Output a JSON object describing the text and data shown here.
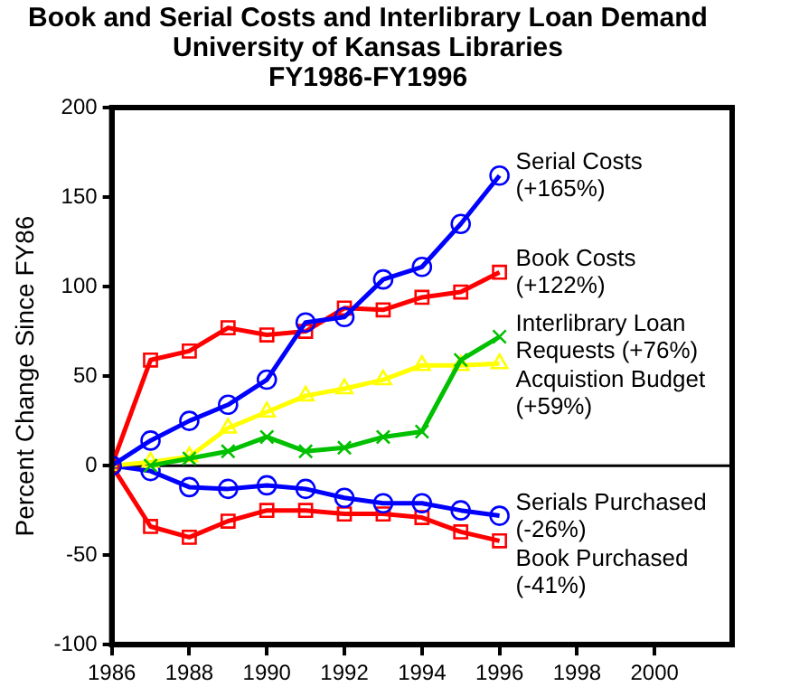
{
  "chart_data": {
    "type": "line",
    "title": "Book and Serial Costs and Interlibrary Loan Demand\nUniversity of Kansas Libraries\nFY1986-FY1996",
    "ylabel": "Percent Change Since FY86",
    "x": [
      1986,
      1987,
      1988,
      1989,
      1990,
      1991,
      1992,
      1993,
      1994,
      1995,
      1996
    ],
    "series": [
      {
        "name": "Serial Costs (+165%)",
        "color": "#0000ff",
        "marker": "circle",
        "values": [
          0,
          14,
          25,
          34,
          48,
          80,
          83,
          104,
          111,
          135,
          162
        ]
      },
      {
        "name": "Book Costs (+122%)",
        "color": "#ff0000",
        "marker": "square",
        "values": [
          0,
          59,
          64,
          77,
          73,
          75,
          88,
          87,
          94,
          97,
          108
        ]
      },
      {
        "name": "Interlibrary Loan Requests (+76%)",
        "color": "#00c000",
        "marker": "cross",
        "values": [
          null,
          0,
          4,
          8,
          16,
          8,
          10,
          16,
          19,
          59,
          72
        ]
      },
      {
        "name": "Acquistion Budget (+59%)",
        "color": "#ffff00",
        "marker": "triangle",
        "values": [
          0,
          2,
          5,
          21,
          30,
          39,
          43,
          48,
          56,
          56,
          57
        ]
      },
      {
        "name": "Serials Purchased (-26%)",
        "color": "#0000ff",
        "marker": "circle",
        "values": [
          0,
          -3,
          -12,
          -13,
          -11,
          -13,
          -18,
          -21,
          -21,
          -25,
          -28
        ]
      },
      {
        "name": "Book Purchased (-41%)",
        "color": "#ff0000",
        "marker": "square",
        "values": [
          0,
          -34,
          -40,
          -31,
          -25,
          -25,
          -27,
          -27,
          -29,
          -37,
          -42
        ]
      }
    ],
    "ref_lines": [
      {
        "axis": "y",
        "value": 0,
        "color": "#000000"
      }
    ],
    "xlim": [
      1986,
      2002
    ],
    "xticks": [
      1986,
      1988,
      1990,
      1992,
      1994,
      1996,
      1998,
      2000
    ],
    "ylim": [
      -100,
      200
    ],
    "yticks": [
      -100,
      -50,
      0,
      50,
      100,
      150,
      200
    ],
    "grid": false,
    "legend": false
  }
}
